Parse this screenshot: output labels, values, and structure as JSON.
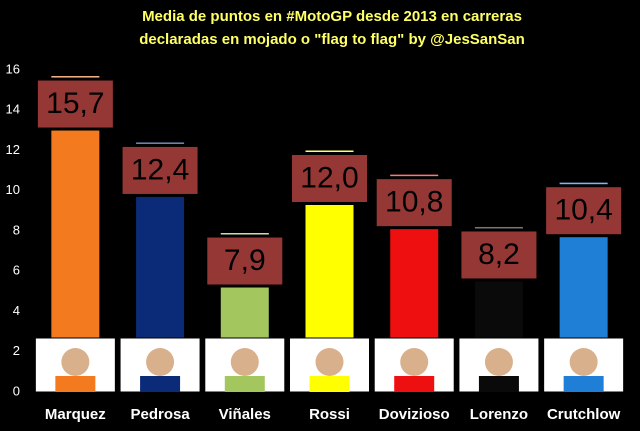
{
  "chart_data": {
    "type": "bar",
    "title": [
      "Media de puntos en #MotoGP desde 2013 en carreras",
      "declaradas en mojado o \"flag to flag\" by @JesSanSan"
    ],
    "categories": [
      "Marquez",
      "Pedrosa",
      "Viñales",
      "Rossi",
      "Dovizioso",
      "Lorenzo",
      "Crutchlow"
    ],
    "values": [
      15.7,
      12.4,
      7.9,
      12.0,
      10.8,
      8.2,
      10.4
    ],
    "value_labels": [
      "15,7",
      "12,4",
      "7,9",
      "12,0",
      "10,8",
      "8,2",
      "10,4"
    ],
    "colors": [
      "#f47a1f",
      "#0b2a78",
      "#a4c65e",
      "#ffff00",
      "#ee1010",
      "#0a0a0a",
      "#1f7fd6"
    ],
    "ylim": [
      0,
      16
    ],
    "yticks": [
      0,
      2,
      4,
      6,
      8,
      10,
      12,
      14,
      16
    ]
  }
}
